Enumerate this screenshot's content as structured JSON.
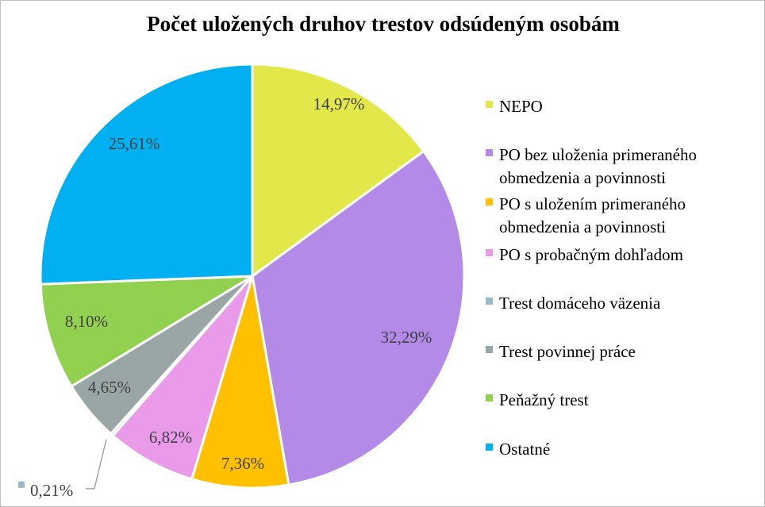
{
  "chart_data": {
    "type": "pie",
    "title": "Počet uložených druhov trestov odsúdeným osobám",
    "legend_position": "right",
    "slices": [
      {
        "name": "NEPO",
        "value": 14.97,
        "label": "14,97%",
        "color": "#e2e84a"
      },
      {
        "name": "PO bez uloženia primeraného obmedzenia a povinnosti",
        "legend_lines": [
          "PO bez uloženia primeraného",
          "obmedzenia a povinnosti"
        ],
        "value": 32.29,
        "label": "32,29%",
        "color": "#b38ae8"
      },
      {
        "name": "PO s uložením primeraného obmedzenia a povinnosti",
        "legend_lines": [
          "PO s uložením primeraného",
          "obmedzenia a povinnosti"
        ],
        "value": 7.36,
        "label": "7,36%",
        "color": "#ffc000"
      },
      {
        "name": "PO s probačným dohľadom",
        "value": 6.82,
        "label": "6,82%",
        "color": "#e99ae9"
      },
      {
        "name": "Trest domáceho väzenia",
        "value": 0.21,
        "label": "0,21%",
        "color": "#9ab9c6"
      },
      {
        "name": "Trest povinnej práce",
        "value": 4.65,
        "label": "4,65%",
        "color": "#9aa6a6"
      },
      {
        "name": "Peňažný trest",
        "value": 8.1,
        "label": "8,10%",
        "color": "#92d050"
      },
      {
        "name": "Ostatné",
        "value": 25.61,
        "label": "25,61%",
        "color": "#00b0f0"
      }
    ]
  }
}
